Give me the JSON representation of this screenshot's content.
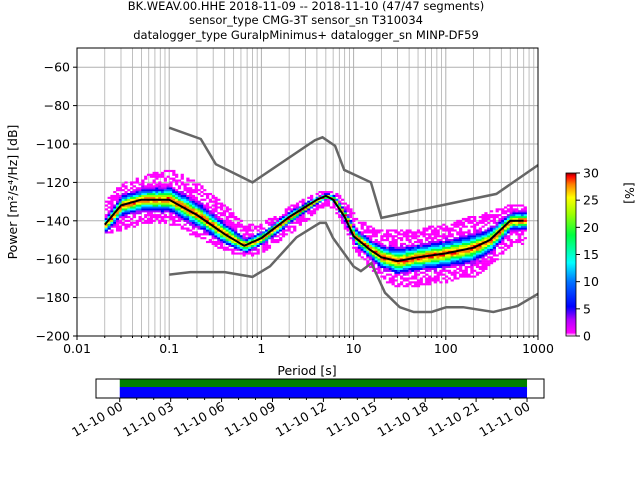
{
  "chart_data": {
    "type": "heatmap",
    "title_lines": [
      "BK.WEAV.00.HHE   2018-11-09 -- 2018-11-10  (47/47 segments)",
      "sensor_type CMG-3T sensor_sn T310034",
      "datalogger_type GuralpMinimus+ datalogger_sn MINP-DF59"
    ],
    "xlabel": "Period [s]",
    "ylabel": "Power [m²/s⁴/Hz] [dB]",
    "xscale": "log",
    "xlim": [
      0.01,
      1000
    ],
    "ylim": [
      -200,
      -50
    ],
    "xticks": [
      0.01,
      0.1,
      1,
      10,
      100,
      1000
    ],
    "xtick_labels": [
      "0.01",
      "0.1",
      "1",
      "10",
      "100",
      "1000"
    ],
    "yticks": [
      -200,
      -180,
      -160,
      -140,
      -120,
      -100,
      -80,
      -60
    ],
    "ytick_labels": [
      "−200",
      "−180",
      "−160",
      "−140",
      "−120",
      "−100",
      "−80",
      "−60"
    ],
    "grid": true,
    "colorbar": {
      "label": "[%]",
      "range": [
        0,
        30
      ],
      "ticks": [
        0,
        5,
        10,
        15,
        20,
        25,
        30
      ],
      "colors": [
        "#ffffff",
        "#ff00ff",
        "#7f00ff",
        "#0000ff",
        "#00a0ff",
        "#00ffff",
        "#00ff40",
        "#a0ff00",
        "#ffff00",
        "#ff8000",
        "#ff0000",
        "#800000"
      ]
    },
    "model_curves": {
      "high_noise": {
        "x": [
          0.1,
          0.22,
          0.32,
          0.8,
          3.8,
          4.6,
          6.3,
          7.9,
          15.4,
          20,
          354,
          1000
        ],
        "y": [
          -91.5,
          -97.4,
          -110.5,
          -120,
          -98,
          -96.5,
          -101,
          -113.5,
          -120,
          -138.5,
          -126,
          -111
        ]
      },
      "low_noise": {
        "x": [
          0.1,
          0.17,
          0.4,
          0.8,
          1.24,
          2.4,
          4.3,
          5,
          6,
          10,
          12,
          15.6,
          21.9,
          31.6,
          45,
          70,
          101,
          154,
          328,
          600,
          1000
        ],
        "y": [
          -168,
          -166.7,
          -166.7,
          -169.2,
          -163.7,
          -148.6,
          -141.1,
          -141.1,
          -149,
          -163.8,
          -166.2,
          -162.1,
          -177.5,
          -185,
          -187.5,
          -187.5,
          -185,
          -185,
          -187.5,
          -184.4,
          -178
        ]
      }
    },
    "mode_line": {
      "x": [
        0.02,
        0.03,
        0.05,
        0.1,
        0.2,
        0.4,
        0.65,
        1,
        2,
        4,
        5,
        6,
        8,
        10,
        15,
        20,
        30,
        50,
        100,
        200,
        300,
        500,
        700
      ],
      "y": [
        -142,
        -132,
        -129,
        -129,
        -137,
        -147,
        -153,
        -149,
        -138,
        -129,
        -127,
        -129,
        -138,
        -148,
        -155,
        -159,
        -161,
        -159,
        -157,
        -154,
        -150,
        -140,
        -140
      ]
    },
    "data_band": {
      "x": [
        0.02,
        0.03,
        0.05,
        0.1,
        0.2,
        0.4,
        0.65,
        1,
        2,
        4,
        5,
        6,
        8,
        10,
        15,
        20,
        30,
        50,
        100,
        200,
        300,
        500,
        700
      ],
      "upper": [
        -130,
        -121,
        -117,
        -114,
        -121,
        -133,
        -143,
        -142,
        -133,
        -126,
        -125,
        -125,
        -131,
        -138,
        -144,
        -145,
        -146,
        -145,
        -142,
        -138,
        -136,
        -132,
        -132
      ],
      "lower": [
        -146,
        -144,
        -141,
        -141,
        -148,
        -155,
        -158,
        -156,
        -146,
        -134,
        -131,
        -133,
        -144,
        -155,
        -164,
        -170,
        -174,
        -173,
        -171,
        -168,
        -162,
        -152,
        -152
      ]
    },
    "time_axis": {
      "tick_labels": [
        "11-10 00",
        "11-10 03",
        "11-10 06",
        "11-10 09",
        "11-10 12",
        "11-10 15",
        "11-10 18",
        "11-10 21",
        "11-11 00"
      ],
      "range_hours": [
        -1.4,
        25.0
      ],
      "coverage_hours": [
        0,
        24
      ],
      "coverage_colors": [
        "#008000",
        "#0000ff"
      ]
    }
  }
}
